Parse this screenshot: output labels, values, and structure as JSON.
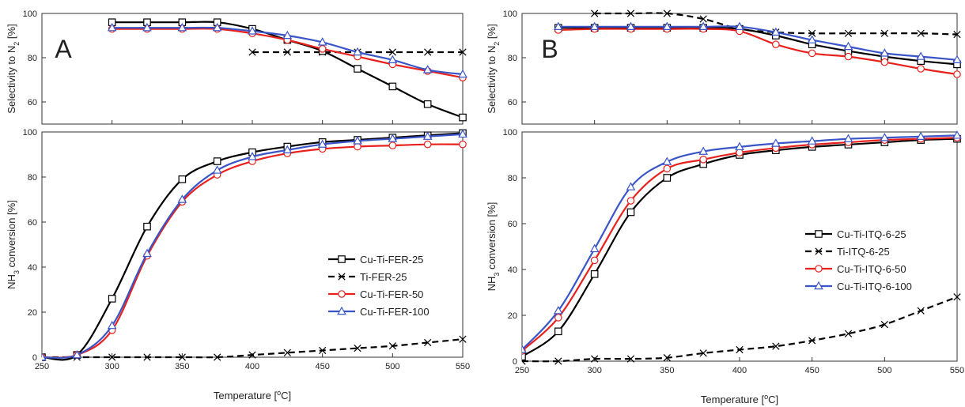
{
  "colors": {
    "Cu-Ti-FER-25": "#000000",
    "Ti-FER-25": "#000000",
    "Cu-Ti-FER-50": "#e8211d",
    "Cu-Ti-FER-100": "#3a55c7",
    "Cu-Ti-ITQ-6-25": "#000000",
    "Ti-ITQ-6-25": "#000000",
    "Cu-Ti-ITQ-6-50": "#e8211d",
    "Cu-Ti-ITQ-6-100": "#3a55c7"
  },
  "chart_data": [
    {
      "type": "line",
      "panel": "A",
      "xlabel": "Temperature [°C]",
      "xlim": [
        250,
        550
      ],
      "x_ticks": [
        "250",
        "300",
        "350",
        "400",
        "450",
        "500",
        "550"
      ],
      "top": {
        "ylabel": "Selectivity to N2 [%]",
        "ylim": [
          50,
          100
        ],
        "y_ticks": [
          "60",
          "80",
          "100"
        ],
        "series": [
          {
            "name": "Cu-Ti-FER-25",
            "marker": "square",
            "dash": false,
            "x": [
              300,
              325,
              350,
              375,
              400,
              425,
              450,
              475,
              500,
              525,
              550
            ],
            "y": [
              96,
              96,
              96,
              96,
              93,
              88,
              83,
              75,
              67,
              59,
              53
            ]
          },
          {
            "name": "Ti-FER-25",
            "marker": "x",
            "dash": true,
            "x": [
              400,
              425,
              450,
              475,
              500,
              525,
              550
            ],
            "y": [
              82.5,
              82.5,
              82.5,
              82.5,
              82.5,
              82.5,
              82.5
            ]
          },
          {
            "name": "Cu-Ti-FER-50",
            "marker": "circle",
            "dash": false,
            "x": [
              300,
              325,
              350,
              375,
              400,
              425,
              450,
              475,
              500,
              525,
              550
            ],
            "y": [
              93,
              93,
              93,
              93,
              91,
              88,
              84,
              80.5,
              77,
              74,
              71
            ]
          },
          {
            "name": "Cu-Ti-FER-100",
            "marker": "triangle",
            "dash": false,
            "x": [
              300,
              325,
              350,
              375,
              400,
              425,
              450,
              475,
              500,
              525,
              550
            ],
            "y": [
              93.5,
              93.5,
              93.5,
              93.5,
              92,
              90,
              87,
              82.5,
              79,
              74.5,
              72.5
            ]
          }
        ]
      },
      "bottom": {
        "ylabel": "NH3 conversion [%]",
        "ylim": [
          0,
          100
        ],
        "y_ticks": [
          "0",
          "20",
          "40",
          "60",
          "80",
          "100"
        ],
        "legend_position": "bottom-right",
        "series": [
          {
            "name": "Cu-Ti-FER-25",
            "marker": "square",
            "dash": false,
            "x": [
              250,
              275,
              300,
              325,
              350,
              375,
              400,
              425,
              450,
              475,
              500,
              525,
              550
            ],
            "y": [
              0,
              1,
              26,
              58,
              79,
              87,
              91,
              93.5,
              95.5,
              96.5,
              97.5,
              98.5,
              99.5
            ]
          },
          {
            "name": "Ti-FER-25",
            "marker": "x",
            "dash": true,
            "x": [
              250,
              275,
              300,
              325,
              350,
              375,
              400,
              425,
              450,
              475,
              500,
              525,
              550
            ],
            "y": [
              0,
              0,
              0,
              0,
              0,
              0,
              1,
              2,
              3,
              4,
              5,
              6.5,
              8
            ]
          },
          {
            "name": "Cu-Ti-FER-50",
            "marker": "circle",
            "dash": false,
            "x": [
              250,
              275,
              300,
              325,
              350,
              375,
              400,
              425,
              450,
              475,
              500,
              525,
              550
            ],
            "y": [
              0,
              1,
              12,
              45,
              69,
              81,
              87,
              90.5,
              92.5,
              93.5,
              94,
              94.5,
              94.5
            ]
          },
          {
            "name": "Cu-Ti-FER-100",
            "marker": "triangle",
            "dash": false,
            "x": [
              250,
              275,
              300,
              325,
              350,
              375,
              400,
              425,
              450,
              475,
              500,
              525,
              550
            ],
            "y": [
              0,
              1,
              14,
              46,
              70,
              83,
              89,
              92,
              94.5,
              96,
              97,
              98,
              99
            ]
          }
        ]
      }
    },
    {
      "type": "line",
      "panel": "B",
      "xlabel": "Temperature [°C]",
      "xlim": [
        250,
        550
      ],
      "x_ticks": [
        "250",
        "300",
        "350",
        "400",
        "450",
        "500",
        "550"
      ],
      "top": {
        "ylabel": "Selectivity to N2 [%]",
        "ylim": [
          50,
          100
        ],
        "y_ticks": [
          "60",
          "80",
          "100"
        ],
        "series": [
          {
            "name": "Cu-Ti-ITQ-6-25",
            "marker": "square",
            "dash": false,
            "x": [
              275,
              300,
              325,
              350,
              375,
              400,
              425,
              450,
              475,
              500,
              525,
              550
            ],
            "y": [
              93.5,
              93.5,
              93.5,
              93.5,
              93.5,
              93,
              90,
              86,
              83,
              80.5,
              78.5,
              77
            ]
          },
          {
            "name": "Ti-ITQ-6-25",
            "marker": "x",
            "dash": true,
            "x": [
              300,
              325,
              350,
              375,
              400,
              425,
              450,
              475,
              500,
              525,
              550
            ],
            "y": [
              100,
              100,
              100,
              97.5,
              93,
              91.5,
              91,
              91,
              91,
              91,
              90.5
            ]
          },
          {
            "name": "Cu-Ti-ITQ-6-50",
            "marker": "circle",
            "dash": false,
            "x": [
              275,
              300,
              325,
              350,
              375,
              400,
              425,
              450,
              475,
              500,
              525,
              550
            ],
            "y": [
              92.5,
              93,
              93,
              93,
              93,
              92,
              86,
              82,
              80.5,
              78,
              75,
              72.5
            ]
          },
          {
            "name": "Cu-Ti-ITQ-6-100",
            "marker": "triangle",
            "dash": false,
            "x": [
              275,
              300,
              325,
              350,
              375,
              400,
              425,
              450,
              475,
              500,
              525,
              550
            ],
            "y": [
              94,
              94,
              94,
              94,
              94,
              94,
              91.5,
              88,
              85,
              82,
              80.5,
              79
            ]
          }
        ]
      },
      "bottom": {
        "ylabel": "NH3 conversion [%]",
        "ylim": [
          0,
          100
        ],
        "y_ticks": [
          "0",
          "20",
          "40",
          "60",
          "80",
          "100"
        ],
        "legend_position": "right",
        "series": [
          {
            "name": "Cu-Ti-ITQ-6-25",
            "marker": "square",
            "dash": false,
            "x": [
              250,
              275,
              300,
              325,
              350,
              375,
              400,
              425,
              450,
              475,
              500,
              525,
              550
            ],
            "y": [
              2,
              13,
              38,
              65,
              80,
              86,
              90,
              92,
              93.5,
              94.5,
              95.5,
              96.5,
              97
            ]
          },
          {
            "name": "Ti-ITQ-6-25",
            "marker": "x",
            "dash": true,
            "x": [
              250,
              275,
              300,
              325,
              350,
              375,
              400,
              425,
              450,
              475,
              500,
              525,
              550
            ],
            "y": [
              0,
              0,
              1,
              1,
              1.5,
              3.5,
              5,
              6.5,
              9,
              12,
              16,
              22,
              28
            ]
          },
          {
            "name": "Cu-Ti-ITQ-6-50",
            "marker": "circle",
            "dash": false,
            "x": [
              250,
              275,
              300,
              325,
              350,
              375,
              400,
              425,
              450,
              475,
              500,
              525,
              550
            ],
            "y": [
              4.5,
              19,
              44,
              70,
              84,
              88,
              91,
              93,
              94.5,
              95.5,
              96.5,
              97,
              97.5
            ]
          },
          {
            "name": "Cu-Ti-ITQ-6-100",
            "marker": "triangle",
            "dash": false,
            "x": [
              250,
              275,
              300,
              325,
              350,
              375,
              400,
              425,
              450,
              475,
              500,
              525,
              550
            ],
            "y": [
              5,
              22,
              49,
              76,
              87,
              91.5,
              93.5,
              95,
              96,
              97,
              97.5,
              98,
              98.5
            ]
          }
        ]
      }
    }
  ]
}
